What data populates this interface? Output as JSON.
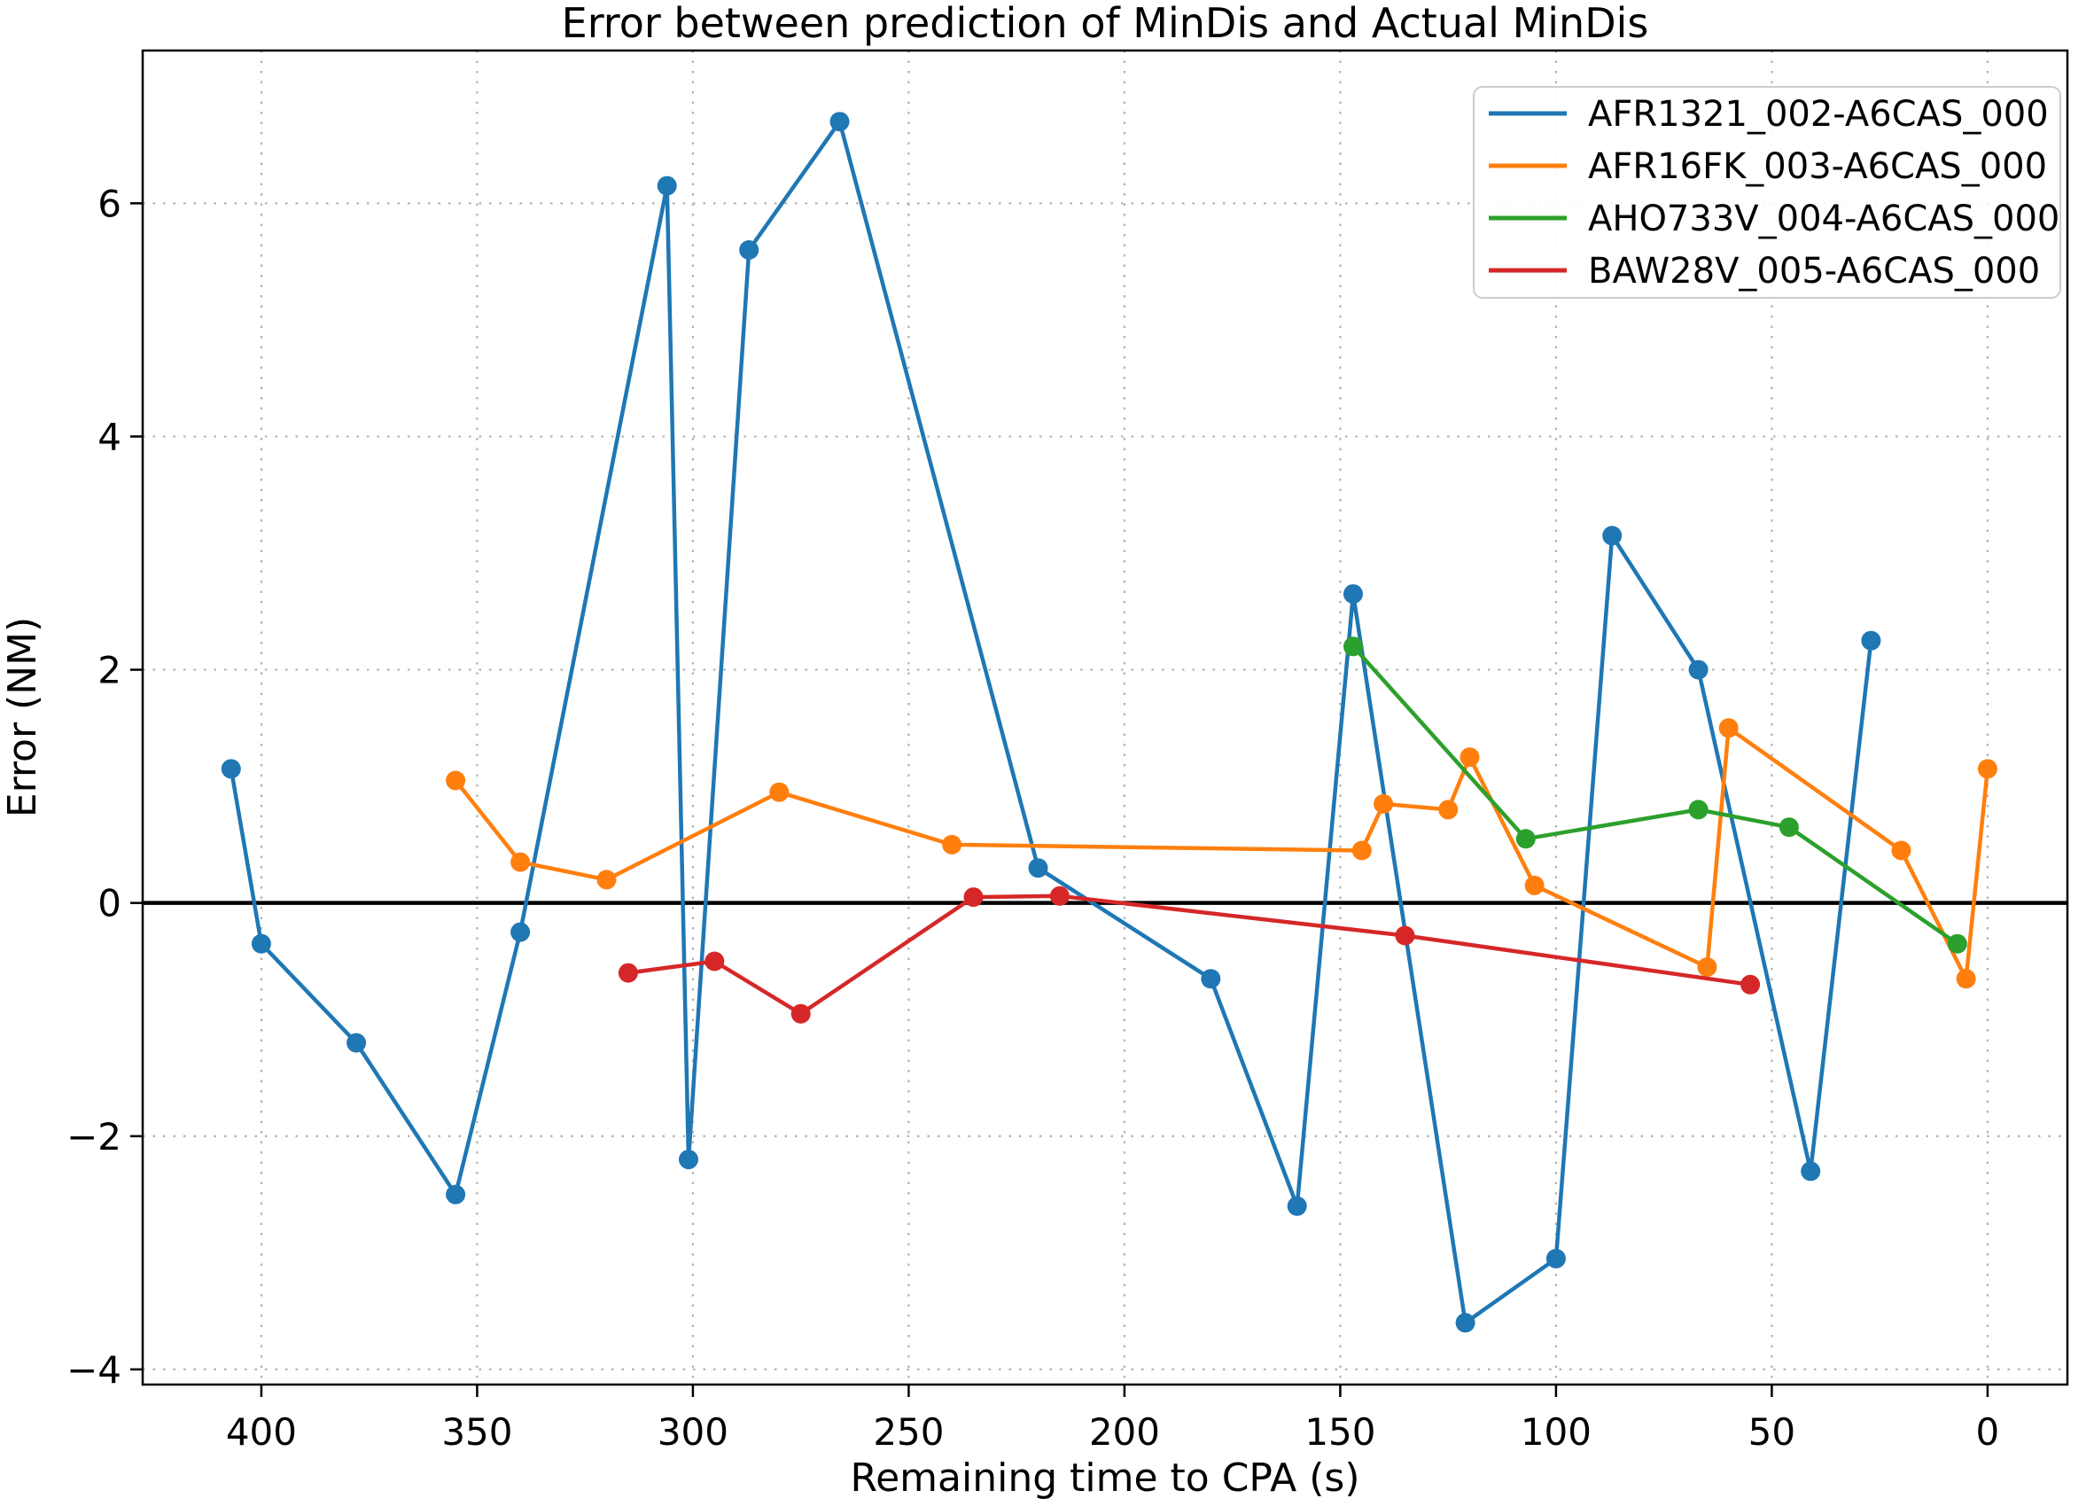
{
  "chart_data": {
    "type": "line",
    "title": "Error between prediction of MinDis and Actual MinDis",
    "xlabel": "Remaining time to CPA (s)",
    "ylabel": "Error (NM)",
    "x_ticks": [
      400,
      350,
      300,
      250,
      200,
      150,
      100,
      50,
      0
    ],
    "y_ticks": [
      -4,
      -2,
      0,
      2,
      4,
      6
    ],
    "xlim": [
      427.5,
      -18.5
    ],
    "ylim": [
      -4.13,
      7.31
    ],
    "x_axis_reversed": true,
    "grid": "dotted",
    "zero_line_y": 0,
    "legend_position": "upper right",
    "series": [
      {
        "name": "AFR1321_002-A6CAS_000",
        "color": "#1f77b4",
        "points": [
          [
            407,
            1.15
          ],
          [
            400,
            -0.35
          ],
          [
            378,
            -1.2
          ],
          [
            355,
            -2.5
          ],
          [
            340,
            -0.25
          ],
          [
            306,
            6.15
          ],
          [
            301,
            -2.2
          ],
          [
            287,
            5.6
          ],
          [
            266,
            6.7
          ],
          [
            220,
            0.3
          ],
          [
            180,
            -0.65
          ],
          [
            160,
            -2.6
          ],
          [
            147,
            2.65
          ],
          [
            121,
            -3.6
          ],
          [
            100,
            -3.05
          ],
          [
            87,
            3.15
          ],
          [
            67,
            2.0
          ],
          [
            41,
            -2.3
          ],
          [
            27,
            2.25
          ]
        ]
      },
      {
        "name": "AFR16FK_003-A6CAS_000",
        "color": "#ff7f0e",
        "points": [
          [
            355,
            1.05
          ],
          [
            340,
            0.35
          ],
          [
            320,
            0.2
          ],
          [
            280,
            0.95
          ],
          [
            240,
            0.5
          ],
          [
            145,
            0.45
          ],
          [
            140,
            0.85
          ],
          [
            125,
            0.8
          ],
          [
            120,
            1.25
          ],
          [
            105,
            0.15
          ],
          [
            65,
            -0.55
          ],
          [
            60,
            1.5
          ],
          [
            20,
            0.45
          ],
          [
            5,
            -0.65
          ],
          [
            0,
            1.15
          ]
        ]
      },
      {
        "name": "AHO733V_004-A6CAS_000",
        "color": "#2ca02c",
        "points": [
          [
            147,
            2.2
          ],
          [
            107,
            0.55
          ],
          [
            67,
            0.8
          ],
          [
            46,
            0.65
          ],
          [
            7,
            -0.35
          ]
        ]
      },
      {
        "name": "BAW28V_005-A6CAS_000",
        "color": "#d62728",
        "points": [
          [
            315,
            -0.6
          ],
          [
            295,
            -0.5
          ],
          [
            275,
            -0.95
          ],
          [
            235,
            0.05
          ],
          [
            215,
            0.06
          ],
          [
            135,
            -0.28
          ],
          [
            55,
            -0.7
          ]
        ]
      }
    ],
    "style": {
      "grid_color": "#b0b0b0",
      "axis_color": "#000000",
      "zero_line_color": "#000000",
      "background": "#ffffff",
      "legend_border_color": "#cccccc"
    }
  }
}
